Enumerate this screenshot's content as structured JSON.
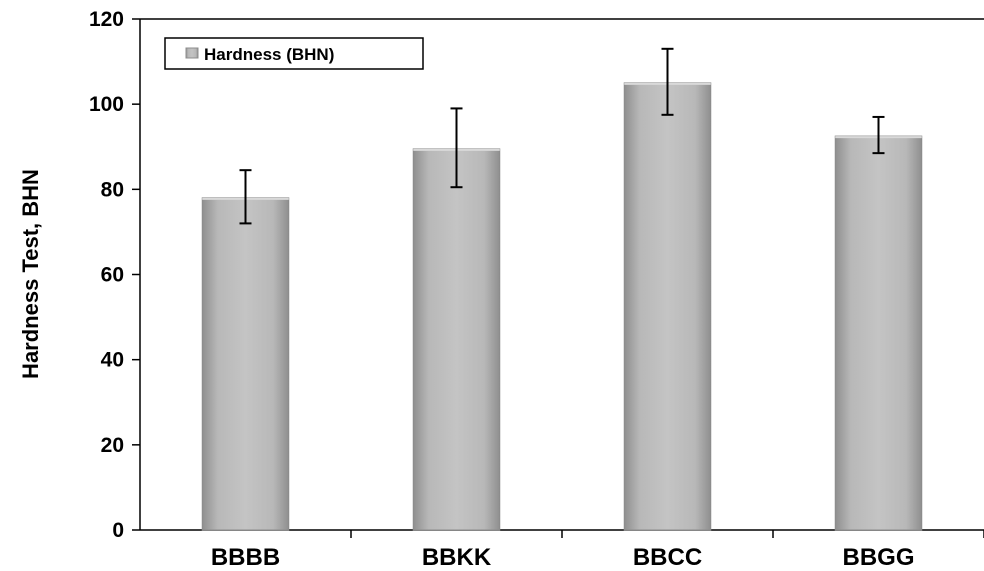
{
  "chart_data": {
    "type": "bar",
    "categories": [
      "BBBB",
      "BBKK",
      "BBCC",
      "BBGG"
    ],
    "series": [
      {
        "name": "Hardness (BHN)",
        "values": [
          78,
          89.5,
          105,
          92.5
        ],
        "error_low": [
          72,
          80.5,
          97.5,
          88.5
        ],
        "error_high": [
          84.5,
          99,
          113,
          97
        ]
      }
    ],
    "ylabel": "Hardness Test, BHN",
    "xlabel": "",
    "ylim": [
      0,
      120
    ],
    "yticks": [
      "0",
      "20",
      "40",
      "60",
      "80",
      "100",
      "120"
    ],
    "legend_position": "top-left",
    "grid": false,
    "colors": {
      "bar": "#b3b3b3",
      "bar_edge": "#8c8c8c",
      "error_bar": "#000000"
    }
  }
}
